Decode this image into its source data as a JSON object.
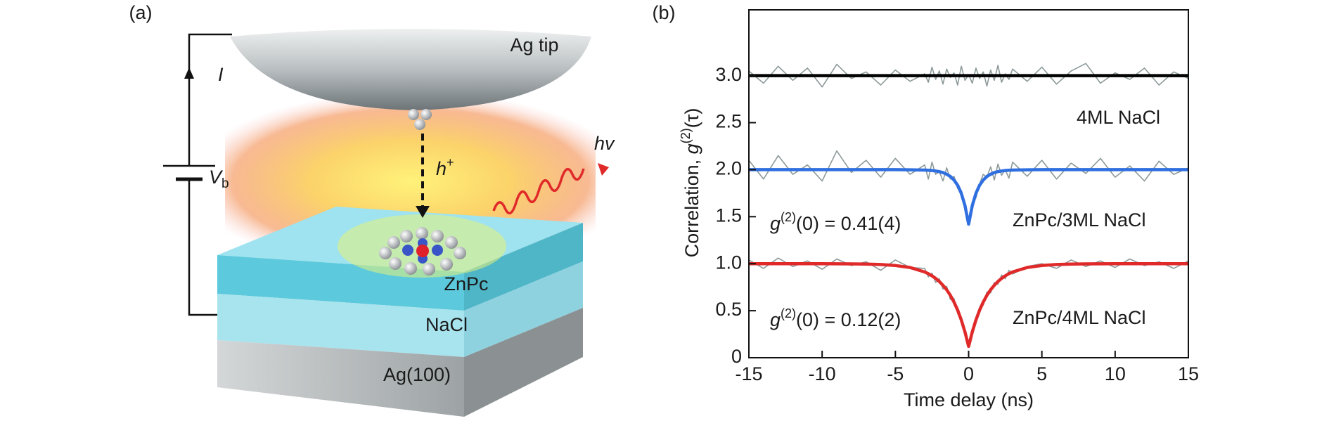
{
  "panels": {
    "a": {
      "label": "(a)",
      "tip": "Ag tip",
      "current": "I",
      "voltage": {
        "var": "V",
        "sub": "b"
      },
      "hole": {
        "var": "h",
        "sup": "+"
      },
      "photon": "hv",
      "layers": [
        "ZnPc",
        "NaCl",
        "Ag(100)"
      ]
    },
    "b": {
      "label": "(b)"
    }
  },
  "chart_data": {
    "type": "line",
    "xlabel": "Time delay (ns)",
    "ylabel": {
      "text": "Correlation, ",
      "var": "g",
      "sup": "(2)",
      "arg": "(τ)"
    },
    "xlim": [
      -15,
      15
    ],
    "ylim": [
      0,
      3.7
    ],
    "xticks": [
      -15,
      -10,
      -5,
      0,
      5,
      10,
      15
    ],
    "yticks": [
      0,
      0.5,
      {
        "value": 1,
        "label": "1.0"
      },
      1.5,
      {
        "value": 2,
        "label": "2.0"
      },
      2.5,
      {
        "value": 3,
        "label": "3.0"
      }
    ],
    "x": [
      -15,
      -14,
      -13,
      -12,
      -11,
      -10,
      -9,
      -8,
      -7,
      -6,
      -5,
      -4,
      -3,
      -2.75,
      -2.5,
      -2.25,
      -2,
      -1.75,
      -1.5,
      -1.25,
      -1,
      -0.75,
      -0.5,
      -0.25,
      0,
      0.25,
      0.5,
      0.75,
      1,
      1.25,
      1.5,
      1.75,
      2,
      2.25,
      2.5,
      2.75,
      3,
      4,
      5,
      6,
      7,
      8,
      9,
      10,
      11,
      12,
      13,
      14,
      15
    ],
    "series": [
      {
        "color": "#8d9999",
        "width": 1.6,
        "values": [
          3.05,
          2.92,
          3.1,
          2.95,
          3.08,
          2.88,
          3.12,
          2.97,
          3.04,
          2.9,
          3.06,
          2.94,
          3.02,
          2.93,
          3.09,
          2.96,
          3.05,
          2.91,
          3.07,
          2.98,
          3.03,
          2.9,
          3.1,
          2.95,
          3.01,
          2.92,
          3.08,
          2.97,
          3.04,
          2.89,
          3.06,
          2.95,
          3.11,
          2.93,
          3.02,
          2.96,
          3.07,
          2.94,
          3.09,
          2.91,
          3.05,
          3.13,
          2.92,
          3.03,
          2.96,
          3.08,
          2.9,
          3.04,
          2.97
        ]
      },
      {
        "color": "#8d9999",
        "width": 1.6,
        "values": [
          2.1,
          1.9,
          2.15,
          1.95,
          2.05,
          1.88,
          2.2,
          1.97,
          2.1,
          1.92,
          2.12,
          1.95,
          2.05,
          1.9,
          2.08,
          1.95,
          1.98,
          1.88,
          2.02,
          1.9,
          1.93,
          1.8,
          1.78,
          1.6,
          1.45,
          1.65,
          1.7,
          1.85,
          1.95,
          1.92,
          2.03,
          1.89,
          2.06,
          1.94,
          2.0,
          1.91,
          2.08,
          1.93,
          2.1,
          1.9,
          2.07,
          1.96,
          2.12,
          1.92,
          2.04,
          1.88,
          2.09,
          1.95,
          2.02
        ]
      },
      {
        "color": "#8d9999",
        "width": 1.6,
        "values": [
          1.04,
          0.95,
          1.06,
          0.97,
          1.03,
          0.94,
          1.05,
          0.98,
          1.02,
          0.93,
          1.04,
          0.96,
          0.95,
          0.86,
          0.9,
          0.8,
          0.84,
          0.73,
          0.76,
          0.62,
          0.63,
          0.47,
          0.43,
          0.25,
          0.14,
          0.3,
          0.37,
          0.54,
          0.56,
          0.7,
          0.69,
          0.8,
          0.78,
          0.88,
          0.84,
          0.93,
          0.89,
          0.97,
          1.0,
          0.95,
          1.04,
          0.97,
          1.03,
          0.96,
          1.05,
          0.98,
          1.02,
          0.95,
          1.03
        ]
      },
      {
        "color": "#000000",
        "width": 4.5,
        "values": [
          3,
          3,
          3,
          3,
          3,
          3,
          3,
          3,
          3,
          3,
          3,
          3,
          3,
          3,
          3,
          3,
          3,
          3,
          3,
          3,
          3,
          3,
          3,
          3,
          3,
          3,
          3,
          3,
          3,
          3,
          3,
          3,
          3,
          3,
          3,
          3,
          3,
          3,
          3,
          3,
          3,
          3,
          3,
          3,
          3,
          3,
          3,
          3,
          3
        ]
      },
      {
        "color": "#2f6fe0",
        "width": 4.5,
        "values": [
          2,
          2,
          2,
          2,
          2,
          2,
          2,
          2,
          2,
          2,
          2,
          1.999,
          1.996,
          1.994,
          1.991,
          1.986,
          1.979,
          1.969,
          1.952,
          1.928,
          1.89,
          1.834,
          1.748,
          1.618,
          1.42,
          1.618,
          1.748,
          1.834,
          1.89,
          1.928,
          1.952,
          1.969,
          1.979,
          1.986,
          1.991,
          1.994,
          1.996,
          1.999,
          2,
          2,
          2,
          2,
          2,
          2,
          2,
          2,
          2,
          2,
          2
        ]
      },
      {
        "color": "#e02a2a",
        "width": 4.5,
        "values": [
          1,
          1,
          1,
          1,
          1,
          1,
          0.999,
          0.998,
          0.996,
          0.991,
          0.981,
          0.96,
          0.912,
          0.894,
          0.871,
          0.844,
          0.811,
          0.771,
          0.723,
          0.664,
          0.592,
          0.506,
          0.401,
          0.274,
          0.12,
          0.274,
          0.401,
          0.506,
          0.592,
          0.664,
          0.723,
          0.771,
          0.811,
          0.844,
          0.871,
          0.894,
          0.912,
          0.96,
          0.981,
          0.991,
          0.996,
          0.998,
          0.999,
          1,
          1,
          1,
          1,
          1,
          1
        ]
      }
    ],
    "annotations": [
      {
        "text": "4ML NaCl"
      },
      {
        "text": "ZnPc/3ML NaCl"
      },
      {
        "text": "ZnPc/4ML NaCl"
      },
      {
        "var": "g",
        "sup": "(2)",
        "text": "(0) = 0.41(4)"
      },
      {
        "var": "g",
        "sup": "(2)",
        "text": "(0) = 0.12(2)"
      }
    ]
  }
}
